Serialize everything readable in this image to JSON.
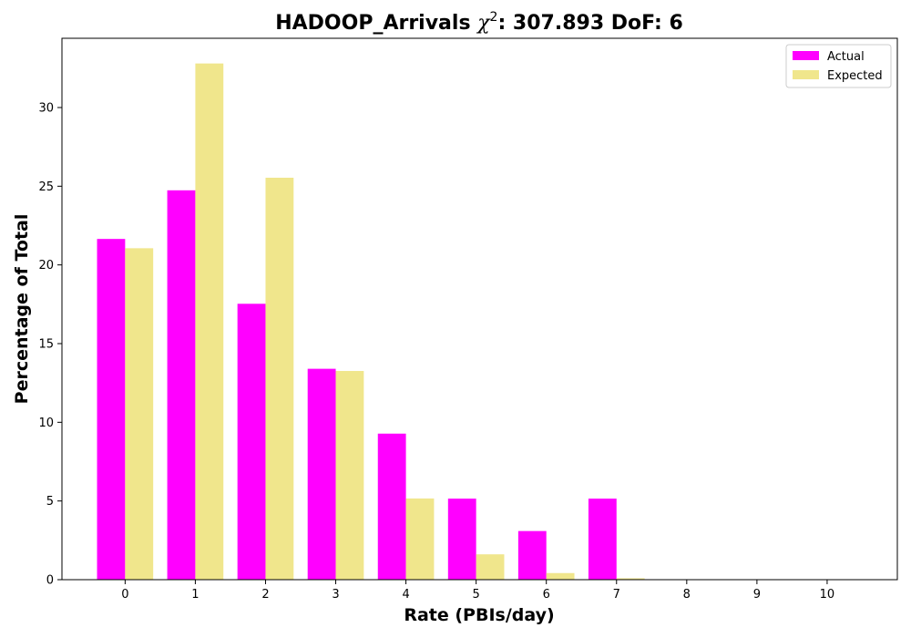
{
  "chart_data": {
    "type": "bar",
    "title": {
      "main": "HADOOP_Arrivals ",
      "chi": "χ",
      "sup": "2",
      "rest": ": 307.893 DoF: 6"
    },
    "xlabel": "Rate (PBIs/day)",
    "ylabel": "Percentage of Total",
    "categories": [
      "0",
      "1",
      "2",
      "3",
      "4",
      "5",
      "6",
      "7",
      "8",
      "9",
      "10"
    ],
    "series": [
      {
        "name": "Actual",
        "color": "#ff00ff",
        "values": [
          21.65,
          24.74,
          17.53,
          13.4,
          9.28,
          5.15,
          3.09,
          5.15,
          0,
          0,
          0
        ]
      },
      {
        "name": "Expected",
        "color": "#f0e68c",
        "values": [
          21.06,
          32.8,
          25.54,
          13.26,
          5.16,
          1.61,
          0.42,
          0.09,
          0.02,
          0.0,
          0.0
        ]
      }
    ],
    "ylim": [
      0,
      34.4
    ],
    "yticks": [
      "0",
      "5",
      "10",
      "15",
      "20",
      "25",
      "30"
    ],
    "grid": false,
    "legend": "top-right"
  }
}
